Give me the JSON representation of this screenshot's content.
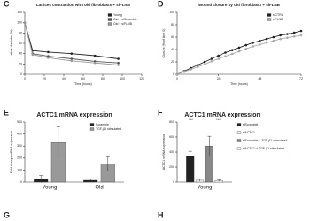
{
  "chart_data": [
    {
      "type": "line",
      "panel": "C",
      "title": "Lattices contraction with old fibroblasts + siFLNB",
      "x_label": "Time (hours)",
      "y_label": "Lattice diameter (%)",
      "x": [
        0,
        8,
        24,
        48,
        72,
        96
      ],
      "series": [
        {
          "name": "Young",
          "color": "#222222",
          "values": [
            100,
            46,
            43,
            40,
            36,
            30
          ]
        },
        {
          "name": "Old + siScramble",
          "color": "#555555",
          "values": [
            100,
            40,
            35,
            30,
            25,
            22
          ]
        },
        {
          "name": "Old + siFLNB",
          "color": "#999999",
          "values": [
            100,
            38,
            32,
            26,
            22,
            18
          ]
        }
      ],
      "xlim": [
        0,
        120
      ],
      "xticks": [
        0,
        20,
        40,
        60,
        80,
        100,
        120
      ],
      "ylim": [
        0,
        120
      ],
      "yticks": [
        0,
        20,
        40,
        60,
        80,
        100,
        120
      ]
    },
    {
      "type": "line",
      "panel": "D",
      "title": "Wound closure by old fibroblasts + siFLNB",
      "x_label": "Time (hours)",
      "y_label": "Closure (% of time 0)",
      "x": [
        0,
        4,
        8,
        12,
        16,
        20,
        24,
        28,
        32,
        36,
        40,
        44,
        48,
        52,
        56,
        60,
        64,
        68,
        72
      ],
      "series": [
        {
          "name": "siCTRL",
          "color": "#222222",
          "values": [
            0,
            5,
            10,
            15,
            20,
            25,
            30,
            35,
            39,
            43,
            47,
            51,
            54,
            57,
            60,
            63,
            65,
            67,
            70
          ]
        },
        {
          "name": "siFLNB",
          "color": "#aaaaaa",
          "values": [
            0,
            4,
            8,
            12,
            16,
            21,
            25,
            29,
            33,
            37,
            41,
            45,
            48,
            51,
            54,
            57,
            59,
            61,
            63
          ]
        }
      ],
      "xlim": [
        0,
        72
      ],
      "xticks": [
        0,
        24,
        48,
        72
      ],
      "ylim": [
        0,
        100
      ],
      "yticks": [
        0,
        20,
        40,
        60,
        80,
        100
      ]
    },
    {
      "type": "bar",
      "panel": "E",
      "title": "ACTC1 mRNA expression",
      "y_label": "Fold change mRNA expression",
      "categories": [
        "Young",
        "Old"
      ],
      "series": [
        {
          "name": "Scramble",
          "color": "#222222",
          "values": [
            25,
            15
          ],
          "errors": [
            30,
            12
          ]
        },
        {
          "name": "TGF-β1 stimulated",
          "color": "#999999",
          "values": [
            330,
            150
          ],
          "errors": [
            130,
            60
          ]
        }
      ],
      "ylim": [
        0,
        500
      ],
      "yticks": [
        0,
        100,
        200,
        300,
        400,
        500
      ]
    },
    {
      "type": "bar",
      "panel": "F",
      "title": "ACTC1 mRNA expression",
      "y_label": "ACTC1 mRNA expression",
      "categories": [
        "Young"
      ],
      "annotations": [
        "***",
        "***"
      ],
      "series": [
        {
          "name": "siScramble",
          "color": "#222222",
          "values": [
            350
          ],
          "errors": [
            60
          ]
        },
        {
          "name": "siACTC1",
          "color": "#eeeeee",
          "values": [
            25
          ],
          "errors": [
            15
          ]
        },
        {
          "name": "siScramble + TGF-β1 stimulated",
          "color": "#888888",
          "values": [
            480
          ],
          "errors": [
            130
          ]
        },
        {
          "name": "siACTC1 + TGF-β1 stimulated",
          "color": "#ffffff",
          "values": [
            20
          ],
          "errors": [
            10
          ]
        }
      ],
      "ylim": [
        0,
        800
      ],
      "yticks": [
        0,
        200,
        400,
        600,
        800
      ]
    }
  ],
  "more_panels": [
    "G",
    "H"
  ]
}
